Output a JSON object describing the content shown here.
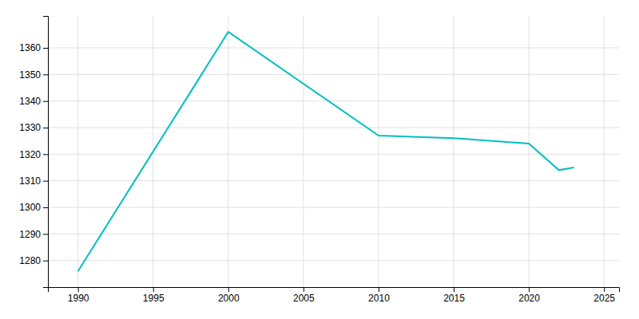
{
  "chart_data": {
    "type": "line",
    "x": [
      1990,
      2000,
      2010,
      2015,
      2020,
      2022,
      2023
    ],
    "values": [
      1276,
      1366,
      1327,
      1326,
      1324,
      1314,
      1315
    ],
    "color": "#00BFBF",
    "xlim": [
      1988,
      2026
    ],
    "ylim": [
      1270,
      1372
    ],
    "xticks": [
      1990,
      1995,
      2000,
      2005,
      2010,
      2015,
      2020,
      2025
    ],
    "yticks": [
      1280,
      1290,
      1300,
      1310,
      1320,
      1330,
      1340,
      1350,
      1360
    ],
    "grid": true
  }
}
